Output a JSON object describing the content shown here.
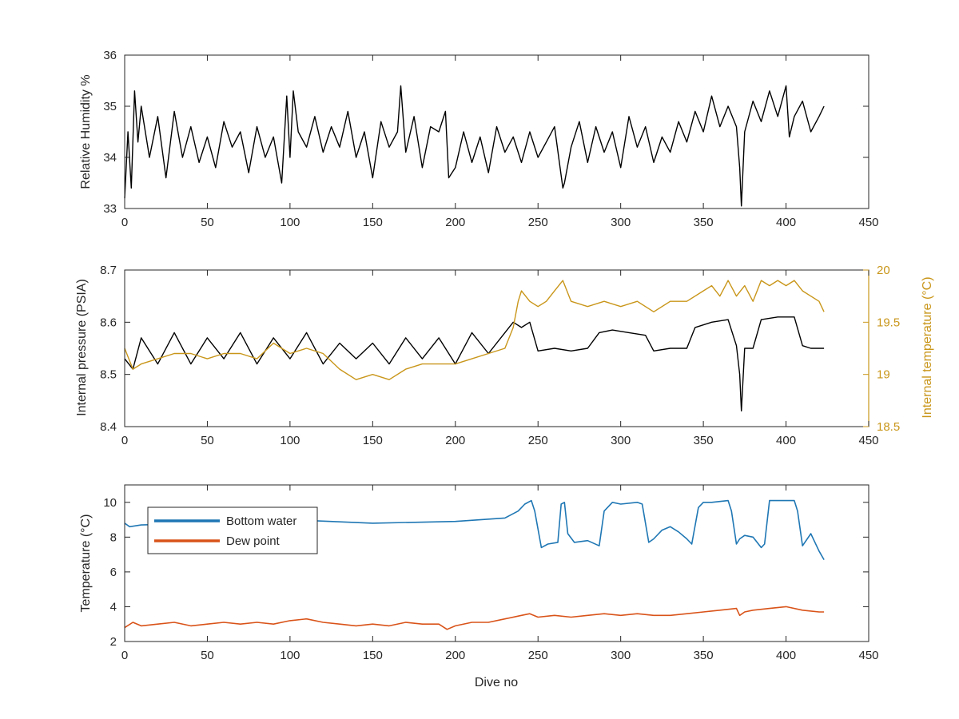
{
  "colors": {
    "axis": "#262626",
    "black_series": "#000000",
    "gold": "#c9961a",
    "blue": "#1f77b4",
    "orange": "#d95319"
  },
  "chart_data": [
    {
      "type": "line",
      "xlabel": "",
      "ylabel": "Relative Humidity %",
      "xlim": [
        0,
        450
      ],
      "ylim": [
        33,
        36
      ],
      "xticks": [
        0,
        50,
        100,
        150,
        200,
        250,
        300,
        350,
        400,
        450
      ],
      "yticks": [
        33,
        34,
        35,
        36
      ],
      "grid": false,
      "series": [
        {
          "color": "#000000",
          "x": [
            0,
            2,
            4,
            6,
            8,
            10,
            15,
            20,
            25,
            30,
            35,
            40,
            45,
            50,
            55,
            60,
            65,
            70,
            75,
            80,
            85,
            90,
            95,
            98,
            100,
            102,
            105,
            110,
            115,
            120,
            125,
            130,
            135,
            140,
            145,
            150,
            155,
            160,
            165,
            167,
            170,
            175,
            180,
            185,
            190,
            194,
            196,
            200,
            205,
            210,
            215,
            220,
            225,
            230,
            235,
            240,
            245,
            250,
            255,
            260,
            265,
            266,
            270,
            275,
            280,
            285,
            290,
            295,
            300,
            305,
            310,
            315,
            320,
            325,
            330,
            335,
            340,
            345,
            350,
            355,
            360,
            365,
            370,
            372,
            373,
            375,
            380,
            385,
            390,
            395,
            400,
            402,
            405,
            410,
            415,
            420,
            423
          ],
          "y": [
            33.2,
            34.5,
            33.4,
            35.3,
            34.3,
            35.0,
            34.0,
            34.8,
            33.6,
            34.9,
            34.0,
            34.6,
            33.9,
            34.4,
            33.8,
            34.7,
            34.2,
            34.5,
            33.7,
            34.6,
            34.0,
            34.4,
            33.5,
            35.2,
            34.0,
            35.3,
            34.5,
            34.2,
            34.8,
            34.1,
            34.6,
            34.2,
            34.9,
            34.0,
            34.5,
            33.6,
            34.7,
            34.2,
            34.5,
            35.4,
            34.1,
            34.8,
            33.8,
            34.6,
            34.5,
            34.9,
            33.6,
            33.8,
            34.5,
            33.9,
            34.4,
            33.7,
            34.6,
            34.1,
            34.4,
            33.9,
            34.5,
            34.0,
            34.3,
            34.6,
            33.4,
            33.5,
            34.2,
            34.7,
            33.9,
            34.6,
            34.1,
            34.5,
            33.8,
            34.8,
            34.2,
            34.6,
            33.9,
            34.4,
            34.1,
            34.7,
            34.3,
            34.9,
            34.5,
            35.2,
            34.6,
            35.0,
            34.6,
            33.8,
            33.05,
            34.5,
            35.1,
            34.7,
            35.3,
            34.8,
            35.4,
            34.4,
            34.8,
            35.1,
            34.5,
            34.8,
            35.0
          ]
        }
      ]
    },
    {
      "type": "line",
      "xlabel": "",
      "ylabel": "Internal pressure (PSIA)",
      "y2label": "Internal temperature (°C)",
      "xlim": [
        0,
        450
      ],
      "ylim": [
        8.4,
        8.7
      ],
      "y2lim": [
        18.5,
        20
      ],
      "xticks": [
        0,
        50,
        100,
        150,
        200,
        250,
        300,
        350,
        400,
        450
      ],
      "yticks": [
        8.4,
        8.5,
        8.6,
        8.7
      ],
      "y2ticks": [
        18.5,
        19,
        19.5,
        20
      ],
      "grid": false,
      "series": [
        {
          "axis": "left",
          "color": "#000000",
          "x": [
            0,
            5,
            10,
            20,
            30,
            40,
            50,
            60,
            70,
            80,
            90,
            100,
            110,
            120,
            130,
            140,
            150,
            160,
            170,
            180,
            190,
            200,
            210,
            220,
            230,
            235,
            240,
            245,
            250,
            260,
            270,
            280,
            287,
            295,
            305,
            315,
            320,
            330,
            340,
            345,
            355,
            365,
            370,
            372,
            373,
            375,
            380,
            385,
            395,
            405,
            410,
            415,
            423
          ],
          "y": [
            8.53,
            8.51,
            8.57,
            8.52,
            8.58,
            8.52,
            8.57,
            8.53,
            8.58,
            8.52,
            8.57,
            8.53,
            8.58,
            8.52,
            8.56,
            8.53,
            8.56,
            8.52,
            8.57,
            8.53,
            8.57,
            8.52,
            8.58,
            8.54,
            8.58,
            8.6,
            8.59,
            8.6,
            8.545,
            8.55,
            8.545,
            8.55,
            8.58,
            8.585,
            8.58,
            8.575,
            8.545,
            8.55,
            8.55,
            8.59,
            8.6,
            8.605,
            8.555,
            8.5,
            8.43,
            8.55,
            8.55,
            8.605,
            8.61,
            8.61,
            8.555,
            8.55,
            8.55
          ]
        },
        {
          "axis": "right",
          "color": "#c9961a",
          "x": [
            0,
            5,
            10,
            20,
            30,
            40,
            50,
            60,
            70,
            80,
            90,
            100,
            110,
            120,
            130,
            140,
            150,
            160,
            170,
            180,
            190,
            200,
            210,
            220,
            230,
            235,
            238,
            240,
            245,
            250,
            255,
            260,
            265,
            270,
            280,
            290,
            300,
            310,
            320,
            330,
            340,
            350,
            355,
            360,
            365,
            370,
            375,
            380,
            385,
            390,
            395,
            400,
            405,
            410,
            415,
            420,
            423
          ],
          "y": [
            19.25,
            19.05,
            19.1,
            19.15,
            19.2,
            19.2,
            19.15,
            19.2,
            19.2,
            19.15,
            19.3,
            19.2,
            19.25,
            19.2,
            19.05,
            18.95,
            19.0,
            18.95,
            19.05,
            19.1,
            19.1,
            19.1,
            19.15,
            19.2,
            19.25,
            19.45,
            19.7,
            19.8,
            19.7,
            19.65,
            19.7,
            19.8,
            19.9,
            19.7,
            19.65,
            19.7,
            19.65,
            19.7,
            19.6,
            19.7,
            19.7,
            19.8,
            19.85,
            19.75,
            19.9,
            19.75,
            19.85,
            19.7,
            19.9,
            19.85,
            19.9,
            19.85,
            19.9,
            19.8,
            19.75,
            19.7,
            19.6
          ]
        }
      ]
    },
    {
      "type": "line",
      "xlabel": "Dive no",
      "ylabel": "Temperature (°C)",
      "xlim": [
        0,
        450
      ],
      "ylim": [
        2,
        11
      ],
      "xticks": [
        0,
        50,
        100,
        150,
        200,
        250,
        300,
        350,
        400,
        450
      ],
      "yticks": [
        2,
        4,
        6,
        8,
        10
      ],
      "grid": false,
      "legend": "top-left",
      "series": [
        {
          "name": "Bottom water",
          "color": "#1f77b4",
          "x": [
            0,
            3,
            10,
            50,
            100,
            150,
            200,
            230,
            238,
            242,
            246,
            248,
            252,
            256,
            262,
            264,
            266,
            268,
            272,
            280,
            287,
            290,
            295,
            300,
            310,
            313,
            317,
            320,
            325,
            330,
            335,
            340,
            343,
            347,
            350,
            355,
            365,
            367,
            370,
            372,
            375,
            380,
            385,
            387,
            390,
            395,
            405,
            407,
            410,
            415,
            420,
            423
          ],
          "y": [
            8.8,
            8.6,
            8.7,
            8.8,
            9.0,
            8.8,
            8.9,
            9.1,
            9.5,
            9.9,
            10.1,
            9.5,
            7.4,
            7.6,
            7.7,
            9.9,
            10.0,
            8.2,
            7.7,
            7.8,
            7.5,
            9.5,
            10.0,
            9.9,
            10.0,
            9.9,
            7.7,
            7.9,
            8.4,
            8.6,
            8.3,
            7.9,
            7.6,
            9.7,
            10.0,
            10.0,
            10.1,
            9.5,
            7.6,
            7.9,
            8.1,
            8.0,
            7.4,
            7.6,
            10.1,
            10.1,
            10.1,
            9.5,
            7.5,
            8.2,
            7.2,
            6.7
          ]
        },
        {
          "name": "Dew point",
          "color": "#d95319",
          "x": [
            0,
            5,
            10,
            20,
            30,
            40,
            50,
            60,
            70,
            80,
            90,
            100,
            110,
            120,
            130,
            140,
            150,
            160,
            170,
            180,
            190,
            195,
            200,
            210,
            220,
            230,
            240,
            245,
            250,
            260,
            270,
            280,
            290,
            300,
            310,
            320,
            330,
            340,
            350,
            360,
            370,
            372,
            375,
            380,
            390,
            400,
            410,
            420,
            423
          ],
          "y": [
            2.8,
            3.1,
            2.9,
            3.0,
            3.1,
            2.9,
            3.0,
            3.1,
            3.0,
            3.1,
            3.0,
            3.2,
            3.3,
            3.1,
            3.0,
            2.9,
            3.0,
            2.9,
            3.1,
            3.0,
            3.0,
            2.7,
            2.9,
            3.1,
            3.1,
            3.3,
            3.5,
            3.6,
            3.4,
            3.5,
            3.4,
            3.5,
            3.6,
            3.5,
            3.6,
            3.5,
            3.5,
            3.6,
            3.7,
            3.8,
            3.9,
            3.5,
            3.7,
            3.8,
            3.9,
            4.0,
            3.8,
            3.7,
            3.7
          ]
        }
      ]
    }
  ]
}
